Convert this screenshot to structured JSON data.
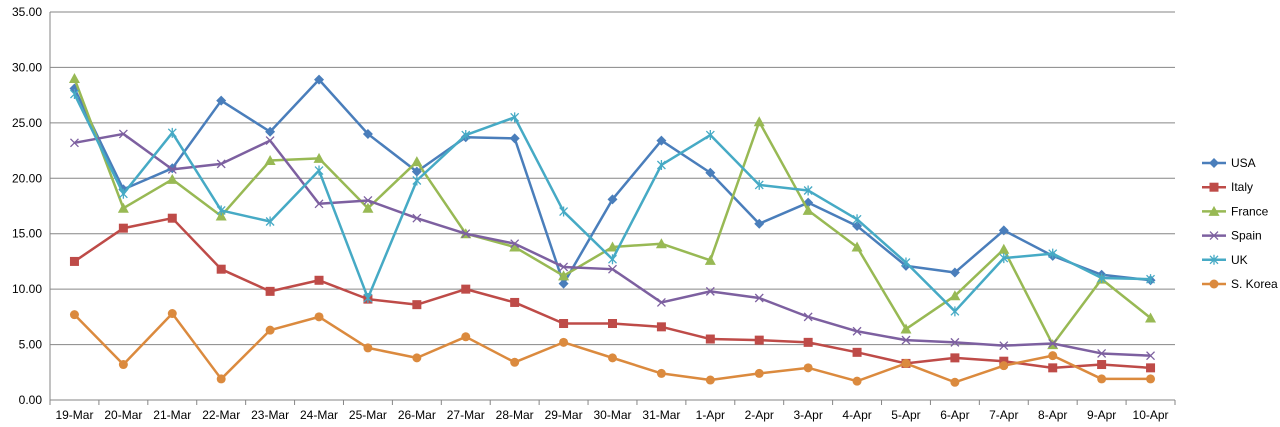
{
  "chart_data": {
    "type": "line",
    "title": "",
    "xlabel": "",
    "ylabel": "",
    "categories": [
      "19-Mar",
      "20-Mar",
      "21-Mar",
      "22-Mar",
      "23-Mar",
      "24-Mar",
      "25-Mar",
      "26-Mar",
      "27-Mar",
      "28-Mar",
      "29-Mar",
      "30-Mar",
      "31-Mar",
      "1-Apr",
      "2-Apr",
      "3-Apr",
      "4-Apr",
      "5-Apr",
      "6-Apr",
      "7-Apr",
      "8-Apr",
      "9-Apr",
      "10-Apr"
    ],
    "ylim": [
      0,
      35
    ],
    "yticks": [
      "0.00",
      "5.00",
      "10.00",
      "15.00",
      "20.00",
      "25.00",
      "30.00",
      "35.00"
    ],
    "grid": true,
    "legend_position": "right",
    "series": [
      {
        "name": "USA",
        "color": "#4A7EBB",
        "marker": "diamond",
        "values": [
          28.1,
          19.0,
          20.9,
          27.0,
          24.2,
          28.9,
          24.0,
          20.6,
          23.7,
          23.6,
          10.5,
          18.1,
          23.4,
          20.5,
          15.9,
          17.8,
          15.7,
          12.1,
          11.5,
          15.3,
          13.0,
          11.3,
          10.8
        ]
      },
      {
        "name": "Italy",
        "color": "#BE4B48",
        "marker": "square",
        "values": [
          12.5,
          15.5,
          16.4,
          11.8,
          9.8,
          10.8,
          9.1,
          8.6,
          10.0,
          8.8,
          6.9,
          6.9,
          6.6,
          5.5,
          5.4,
          5.2,
          4.3,
          3.3,
          3.8,
          3.5,
          2.9,
          3.2,
          2.9
        ]
      },
      {
        "name": "France",
        "color": "#98B954",
        "marker": "triangle",
        "values": [
          29.0,
          17.3,
          19.9,
          16.6,
          21.6,
          21.8,
          17.3,
          21.5,
          15.0,
          13.8,
          11.2,
          13.8,
          14.1,
          12.6,
          25.1,
          17.1,
          13.8,
          6.4,
          9.4,
          13.6,
          5.0,
          10.9,
          7.4
        ]
      },
      {
        "name": "Spain",
        "color": "#7D60A0",
        "marker": "x",
        "values": [
          23.2,
          24.0,
          20.8,
          21.3,
          23.4,
          17.7,
          18.0,
          16.4,
          15.0,
          14.1,
          12.0,
          11.8,
          8.8,
          9.8,
          9.2,
          7.5,
          6.2,
          5.4,
          5.2,
          4.9,
          5.1,
          4.2,
          4.0
        ]
      },
      {
        "name": "UK",
        "color": "#46AAC5",
        "marker": "asterisk",
        "values": [
          27.6,
          18.6,
          24.1,
          17.1,
          16.1,
          20.7,
          9.2,
          19.8,
          23.9,
          25.5,
          17.0,
          12.7,
          21.2,
          23.9,
          19.4,
          18.9,
          16.3,
          12.4,
          8.0,
          12.8,
          13.2,
          11.0,
          10.9
        ]
      },
      {
        "name": "S. Korea",
        "color": "#DB8A3E",
        "marker": "circle",
        "values": [
          7.7,
          3.2,
          7.8,
          1.9,
          6.3,
          7.5,
          4.7,
          3.8,
          5.7,
          3.4,
          5.2,
          3.8,
          2.4,
          1.8,
          2.4,
          2.9,
          1.7,
          3.3,
          1.6,
          3.1,
          4.0,
          1.9,
          1.9
        ]
      }
    ]
  }
}
